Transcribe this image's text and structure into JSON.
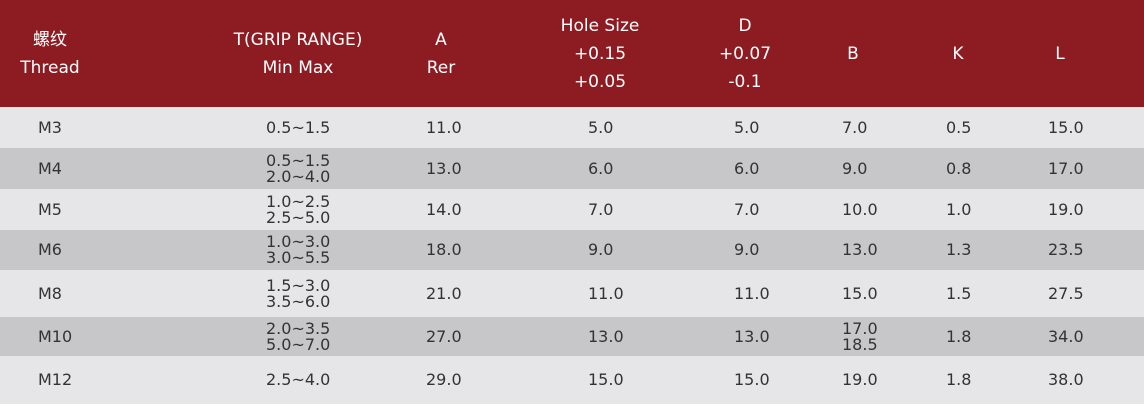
{
  "header": {
    "thread": [
      "螺纹",
      "Thread"
    ],
    "grip": [
      "T(GRIP RANGE)",
      "Min Max"
    ],
    "a": [
      "A",
      "Rer"
    ],
    "hole": [
      "Hole Size",
      "+0.15",
      "+0.05"
    ],
    "d": [
      "D",
      "+0.07",
      "-0.1"
    ],
    "b": [
      "B"
    ],
    "k": [
      "K"
    ],
    "l": [
      "L"
    ]
  },
  "rows": [
    {
      "thread": "M3",
      "grip": [
        "0.5~1.5"
      ],
      "a": "11.0",
      "hole": "5.0",
      "d": "5.0",
      "b": [
        "7.0"
      ],
      "k": "0.5",
      "l": "15.0"
    },
    {
      "thread": "M4",
      "grip": [
        "0.5~1.5",
        "2.0~4.0"
      ],
      "a": "13.0",
      "hole": "6.0",
      "d": "6.0",
      "b": [
        "9.0"
      ],
      "k": "0.8",
      "l": "17.0"
    },
    {
      "thread": "M5",
      "grip": [
        "1.0~2.5",
        "2.5~5.0"
      ],
      "a": "14.0",
      "hole": "7.0",
      "d": "7.0",
      "b": [
        "10.0"
      ],
      "k": "1.0",
      "l": "19.0"
    },
    {
      "thread": "M6",
      "grip": [
        "1.0~3.0",
        "3.0~5.5"
      ],
      "a": "18.0",
      "hole": "9.0",
      "d": "9.0",
      "b": [
        "13.0"
      ],
      "k": "1.3",
      "l": "23.5"
    },
    {
      "thread": "M8",
      "grip": [
        "1.5~3.0",
        "3.5~6.0"
      ],
      "a": "21.0",
      "hole": "11.0",
      "d": "11.0",
      "b": [
        "15.0"
      ],
      "k": "1.5",
      "l": "27.5"
    },
    {
      "thread": "M10",
      "grip": [
        "2.0~3.5",
        "5.0~7.0"
      ],
      "a": "27.0",
      "hole": "13.0",
      "d": "13.0",
      "b": [
        "17.0",
        "18.5"
      ],
      "k": "1.8",
      "l": "34.0"
    },
    {
      "thread": "M12",
      "grip": [
        "2.5~4.0"
      ],
      "a": "29.0",
      "hole": "15.0",
      "d": "15.0",
      "b": [
        "19.0"
      ],
      "k": "1.8",
      "l": "38.0"
    }
  ]
}
